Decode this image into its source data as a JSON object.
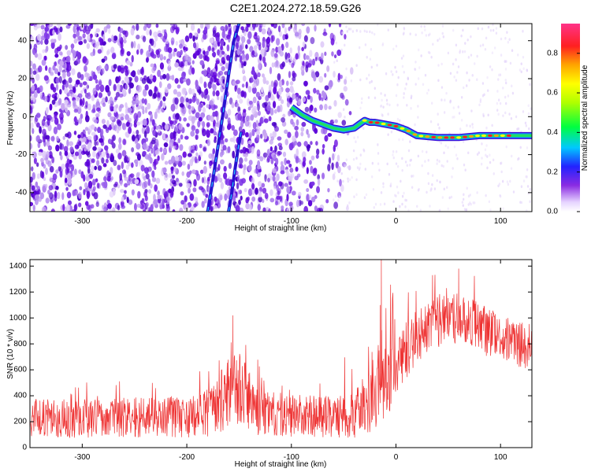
{
  "title": "C2E1.2024.272.18.59.G26",
  "colors": {
    "snr_line": "#ee3333",
    "axis": "#000000",
    "background": "#ffffff",
    "noise_dark": "#5a00d8",
    "noise_light": "#c9a8f2"
  },
  "chart_data": [
    {
      "type": "heatmap",
      "xlabel": "Height of straight line (km)",
      "ylabel": "Frequency (Hz)",
      "xlim": [
        -350,
        130
      ],
      "ylim": [
        -50,
        49
      ],
      "xticks": [
        -300,
        -200,
        -100,
        0,
        100
      ],
      "xtick_labels": [
        "-300",
        "-200",
        "-100",
        "0",
        "100"
      ],
      "yticks": [
        -40,
        -20,
        0,
        20,
        40
      ],
      "ytick_labels": [
        "-40",
        "-20",
        "0",
        "20",
        "40"
      ],
      "grid": false,
      "colorbar": {
        "label": "Normalized spectral amplitude",
        "range": [
          0.0,
          0.95
        ],
        "ticks": [
          0.0,
          0.2,
          0.4,
          0.6,
          0.8
        ],
        "tick_labels": [
          "0.0",
          "0.2",
          "0.4",
          "0.6",
          "0.8"
        ]
      },
      "noise_region_x": [
        -350,
        -50
      ],
      "ridges": [
        {
          "x": [
            -180,
            -175,
            -170,
            -165,
            -160,
            -155,
            -150
          ],
          "y": [
            -50,
            -33,
            -15,
            3,
            22,
            40,
            49
          ]
        },
        {
          "x": [
            -160,
            -157,
            -154,
            -151,
            -148
          ],
          "y": [
            -50,
            -40,
            -28,
            -17,
            -8
          ]
        }
      ],
      "main_trace": {
        "x": [
          -100,
          -90,
          -80,
          -70,
          -60,
          -50,
          -40,
          -35,
          -30,
          -25,
          -20,
          -10,
          0,
          10,
          20,
          40,
          60,
          80,
          100,
          130
        ],
        "y": [
          5,
          1,
          -2,
          -4,
          -6,
          -7,
          -6,
          -4,
          -2,
          -3,
          -3,
          -4,
          -5,
          -7,
          -10,
          -11,
          -11,
          -10,
          -10,
          -10
        ]
      }
    },
    {
      "type": "line",
      "xlabel": "Height of straight line (km)",
      "ylabel": "SNR (10 * v/v)",
      "xlim": [
        -350,
        130
      ],
      "ylim": [
        0,
        1450
      ],
      "xticks": [
        -300,
        -200,
        -100,
        0,
        100
      ],
      "xtick_labels": [
        "-300",
        "-200",
        "-100",
        "0",
        "100"
      ],
      "yticks": [
        0,
        200,
        400,
        600,
        800,
        1000,
        1200,
        1400
      ],
      "ytick_labels": [
        "0",
        "200",
        "400",
        "600",
        "800",
        "1000",
        "1200",
        "1400"
      ],
      "grid": false,
      "envelope": {
        "x": [
          -350,
          -320,
          -290,
          -260,
          -230,
          -200,
          -180,
          -170,
          -160,
          -150,
          -140,
          -130,
          -120,
          -100,
          -80,
          -60,
          -50,
          -40,
          -30,
          -20,
          -10,
          0,
          10,
          20,
          30,
          40,
          50,
          60,
          70,
          80,
          90,
          100,
          110,
          130
        ],
        "mean": [
          230,
          225,
          225,
          230,
          230,
          235,
          260,
          330,
          430,
          450,
          360,
          280,
          260,
          250,
          240,
          240,
          245,
          250,
          330,
          400,
          500,
          620,
          760,
          860,
          920,
          960,
          980,
          1000,
          990,
          930,
          880,
          840,
          810,
          780
        ],
        "spread": [
          150,
          150,
          150,
          155,
          160,
          170,
          190,
          230,
          270,
          280,
          240,
          190,
          170,
          165,
          160,
          165,
          170,
          180,
          230,
          270,
          280,
          260,
          230,
          210,
          200,
          200,
          200,
          200,
          200,
          195,
          190,
          185,
          180,
          175
        ]
      },
      "spikes": [
        {
          "x": -156,
          "y": 1020
        },
        {
          "x": -14,
          "y": 1450
        },
        {
          "x": -15,
          "y": 1100
        },
        {
          "x": 60,
          "y": 1380
        },
        {
          "x": 35,
          "y": 1330
        }
      ]
    }
  ]
}
